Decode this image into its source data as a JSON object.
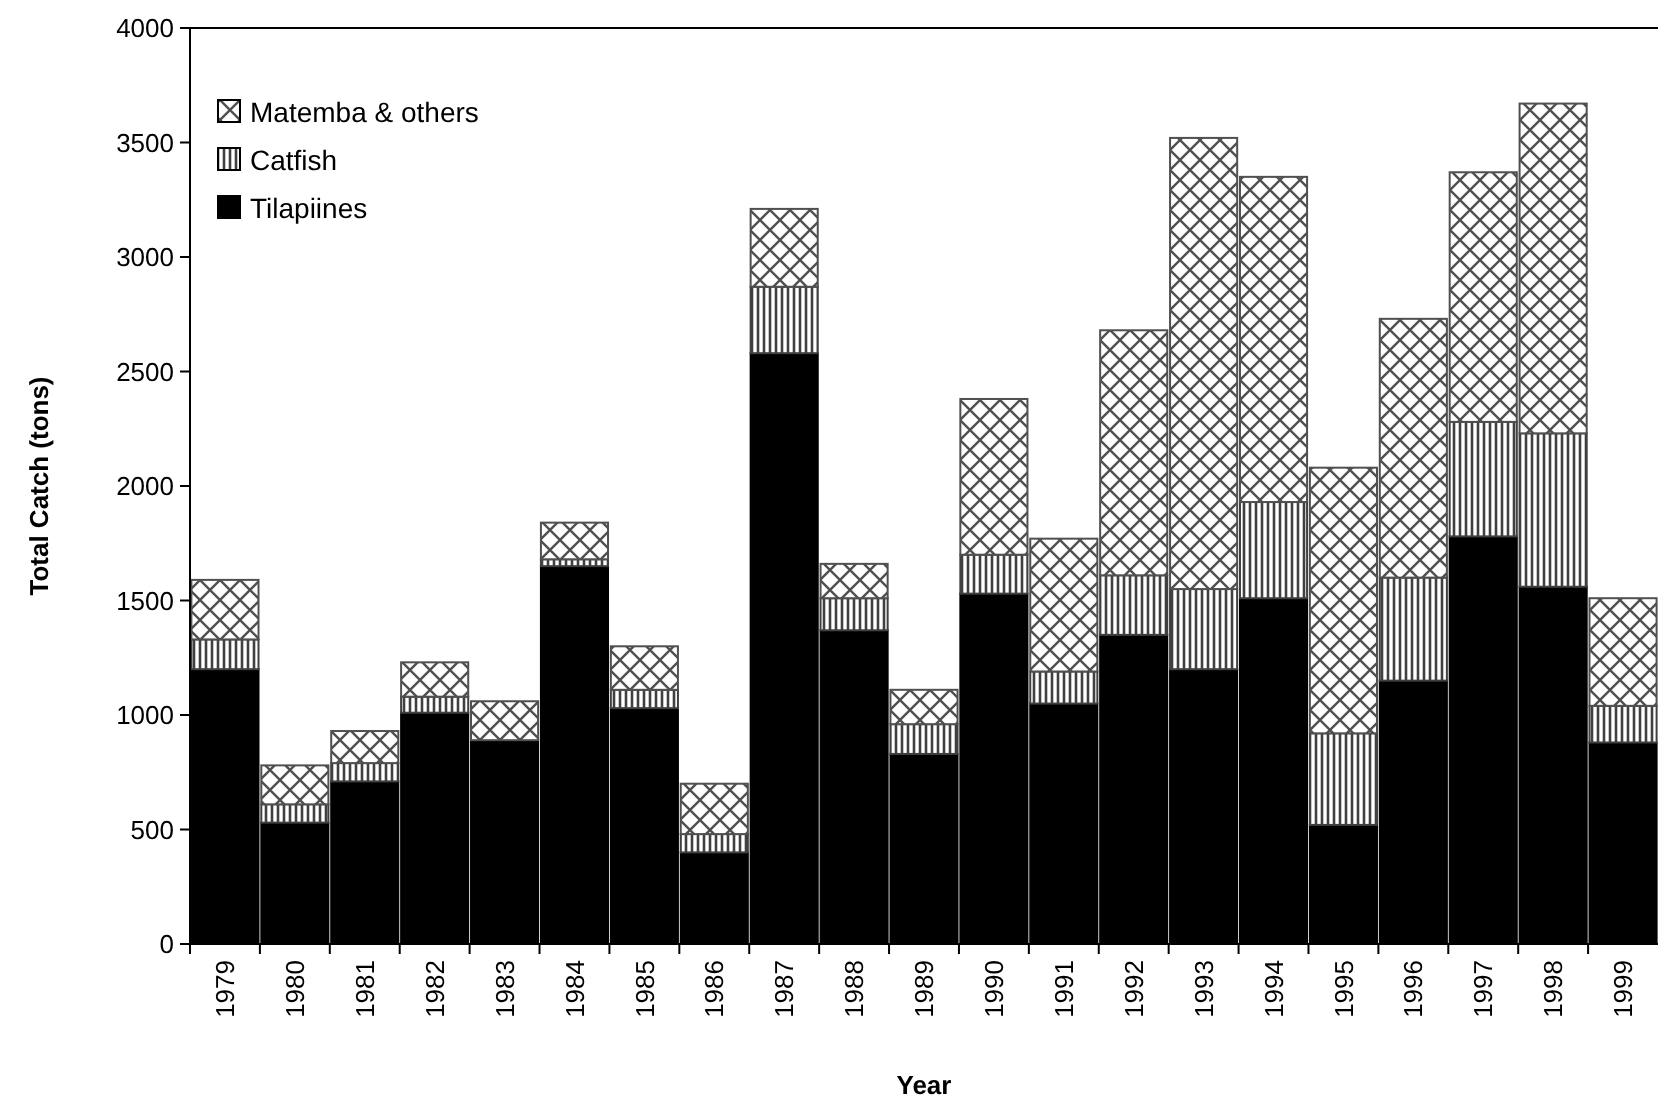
{
  "chart_data": {
    "type": "bar",
    "stacked": true,
    "xlabel": "Year",
    "ylabel": "Total Catch (tons)",
    "categories": [
      "1979",
      "1980",
      "1981",
      "1982",
      "1983",
      "1984",
      "1985",
      "1986",
      "1987",
      "1988",
      "1989",
      "1990",
      "1991",
      "1992",
      "1993",
      "1994",
      "1995",
      "1996",
      "1997",
      "1998",
      "1999"
    ],
    "series": [
      {
        "name": "Tilapiines",
        "color": "#000000",
        "values": [
          1200,
          530,
          710,
          1010,
          890,
          1650,
          1030,
          400,
          2580,
          1370,
          830,
          1530,
          1050,
          1350,
          1200,
          1510,
          520,
          1150,
          1780,
          1560,
          880
        ]
      },
      {
        "name": "Catfish",
        "color": "#404040",
        "values": [
          130,
          80,
          80,
          70,
          0,
          30,
          80,
          80,
          290,
          140,
          130,
          170,
          140,
          260,
          350,
          420,
          400,
          450,
          500,
          670,
          160
        ]
      },
      {
        "name": "Matemba & others",
        "color": "#505050",
        "values": [
          260,
          170,
          140,
          150,
          170,
          160,
          190,
          220,
          340,
          150,
          150,
          680,
          580,
          1070,
          1970,
          1420,
          1160,
          1130,
          1090,
          1440,
          470
        ]
      }
    ],
    "ylim": [
      0,
      4000
    ],
    "yticks": [
      0,
      500,
      1000,
      1500,
      2000,
      2500,
      3000,
      3500,
      4000
    ],
    "grid": false,
    "legend": "top left"
  }
}
